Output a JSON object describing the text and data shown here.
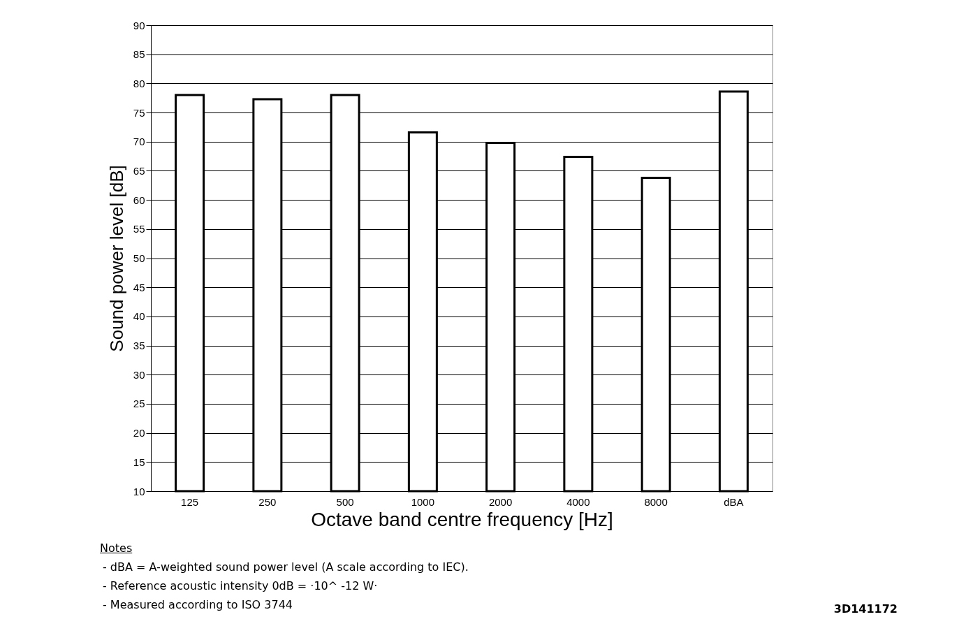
{
  "chart_data": {
    "type": "bar",
    "xlabel": "Octave band centre frequency [Hz]",
    "ylabel": "Sound power level [dB]",
    "categories": [
      "125",
      "250",
      "500",
      "1000",
      "2000",
      "4000",
      "8000",
      "dBA"
    ],
    "values": [
      78,
      77.3,
      78,
      71.6,
      69.8,
      67.4,
      63.8,
      78.6
    ],
    "color": "#ffffff",
    "ylim": [
      10,
      90
    ],
    "yticks": [
      10,
      15,
      20,
      25,
      30,
      35,
      40,
      45,
      50,
      55,
      60,
      65,
      70,
      75,
      80,
      85,
      90
    ],
    "grid": "y",
    "annotations": [
      "Notes",
      "- dBA = A-weighted sound power level (A scale according to IEC).",
      "- Reference acoustic intensity 0dB = ·10^ -12 W·",
      "- Measured according to ISO 3744",
      "3D141172"
    ]
  }
}
